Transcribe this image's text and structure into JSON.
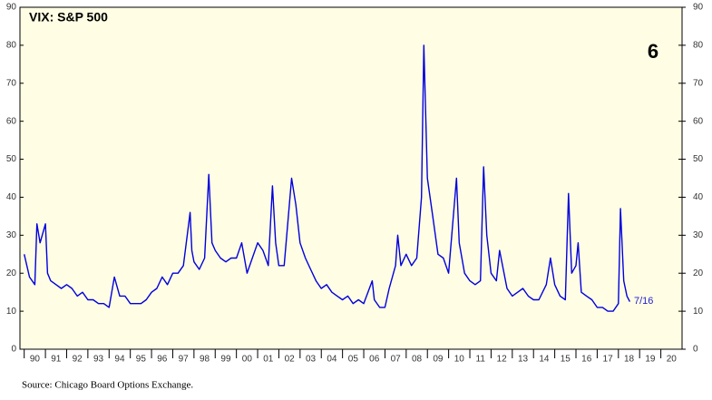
{
  "chart_data": {
    "type": "line",
    "title": "VIX: S&P 500",
    "source": "Source: Chicago Board Options Exchange.",
    "annotations": [
      "6",
      "7/16"
    ],
    "x": [
      1990,
      1990.25,
      1990.5,
      1990.6,
      1990.75,
      1991,
      1991.1,
      1991.25,
      1991.5,
      1991.75,
      1992,
      1992.25,
      1992.5,
      1992.75,
      1993,
      1993.25,
      1993.5,
      1993.75,
      1994,
      1994.25,
      1994.5,
      1994.75,
      1995,
      1995.25,
      1995.5,
      1995.75,
      1996,
      1996.25,
      1996.5,
      1996.75,
      1997,
      1997.25,
      1997.5,
      1997.82,
      1997.9,
      1998,
      1998.25,
      1998.5,
      1998.7,
      1998.85,
      1999,
      1999.25,
      1999.5,
      1999.75,
      2000,
      2000.25,
      2000.5,
      2000.75,
      2001,
      2001.25,
      2001.5,
      2001.7,
      2001.85,
      2002,
      2002.25,
      2002.6,
      2002.8,
      2003,
      2003.25,
      2003.5,
      2003.75,
      2004,
      2004.25,
      2004.5,
      2004.75,
      2005,
      2005.25,
      2005.5,
      2005.75,
      2006,
      2006.4,
      2006.5,
      2006.75,
      2007,
      2007.2,
      2007.5,
      2007.6,
      2007.75,
      2008,
      2008.25,
      2008.5,
      2008.72,
      2008.83,
      2008.95,
      2009,
      2009.25,
      2009.5,
      2009.75,
      2010,
      2010.37,
      2010.5,
      2010.75,
      2011,
      2011.25,
      2011.5,
      2011.65,
      2011.8,
      2012,
      2012.25,
      2012.4,
      2012.75,
      2013,
      2013.25,
      2013.5,
      2013.75,
      2014,
      2014.25,
      2014.6,
      2014.8,
      2015,
      2015.25,
      2015.5,
      2015.65,
      2015.8,
      2016,
      2016.1,
      2016.25,
      2016.5,
      2016.75,
      2017,
      2017.25,
      2017.5,
      2017.75,
      2018,
      2018.1,
      2018.25,
      2018.4,
      2018.54
    ],
    "series": [
      {
        "name": "VIX",
        "color": "#0000dd",
        "values": [
          25,
          19,
          17,
          33,
          28,
          33,
          20,
          18,
          17,
          16,
          17,
          16,
          14,
          15,
          13,
          13,
          12,
          12,
          11,
          19,
          14,
          14,
          12,
          12,
          12,
          13,
          15,
          16,
          19,
          17,
          20,
          20,
          22,
          36,
          26,
          23,
          21,
          24,
          46,
          28,
          26,
          24,
          23,
          24,
          24,
          28,
          20,
          24,
          28,
          26,
          22,
          43,
          28,
          22,
          22,
          45,
          38,
          28,
          24,
          21,
          18,
          16,
          17,
          15,
          14,
          13,
          14,
          12,
          13,
          12,
          18,
          13,
          11,
          11,
          16,
          22,
          30,
          22,
          25,
          22,
          24,
          40,
          80,
          55,
          45,
          35,
          25,
          24,
          20,
          45,
          28,
          20,
          18,
          17,
          18,
          48,
          30,
          20,
          18,
          26,
          16,
          14,
          15,
          16,
          14,
          13,
          13,
          17,
          24,
          17,
          14,
          13,
          41,
          20,
          22,
          28,
          15,
          14,
          13,
          11,
          11,
          10,
          10,
          12,
          37,
          18,
          14,
          12.5
        ]
      }
    ],
    "xlim": [
      1989.8,
      2021
    ],
    "ylim": [
      0,
      90
    ],
    "xticks": [
      {
        "value": 1990,
        "label": "90"
      },
      {
        "value": 1991,
        "label": "91"
      },
      {
        "value": 1992,
        "label": "92"
      },
      {
        "value": 1993,
        "label": "93"
      },
      {
        "value": 1994,
        "label": "94"
      },
      {
        "value": 1995,
        "label": "95"
      },
      {
        "value": 1996,
        "label": "96"
      },
      {
        "value": 1997,
        "label": "97"
      },
      {
        "value": 1998,
        "label": "98"
      },
      {
        "value": 1999,
        "label": "99"
      },
      {
        "value": 2000,
        "label": "00"
      },
      {
        "value": 2001,
        "label": "01"
      },
      {
        "value": 2002,
        "label": "02"
      },
      {
        "value": 2003,
        "label": "03"
      },
      {
        "value": 2004,
        "label": "04"
      },
      {
        "value": 2005,
        "label": "05"
      },
      {
        "value": 2006,
        "label": "06"
      },
      {
        "value": 2007,
        "label": "07"
      },
      {
        "value": 2008,
        "label": "08"
      },
      {
        "value": 2009,
        "label": "09"
      },
      {
        "value": 2010,
        "label": "10"
      },
      {
        "value": 2011,
        "label": "11"
      },
      {
        "value": 2012,
        "label": "12"
      },
      {
        "value": 2013,
        "label": "13"
      },
      {
        "value": 2014,
        "label": "14"
      },
      {
        "value": 2015,
        "label": "15"
      },
      {
        "value": 2016,
        "label": "16"
      },
      {
        "value": 2017,
        "label": "17"
      },
      {
        "value": 2018,
        "label": "18"
      },
      {
        "value": 2019,
        "label": "19"
      },
      {
        "value": 2020,
        "label": "20"
      }
    ],
    "yticks": [
      0,
      10,
      20,
      30,
      40,
      50,
      60,
      70,
      80,
      90
    ]
  }
}
